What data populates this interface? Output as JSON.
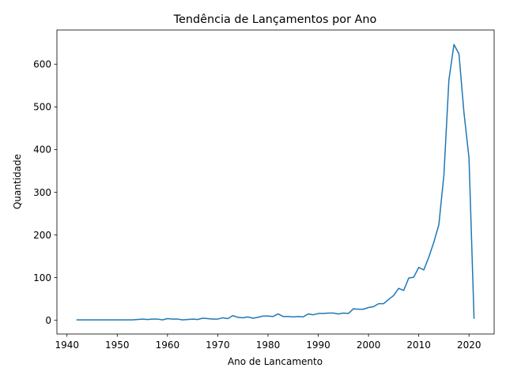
{
  "chart_data": {
    "type": "line",
    "title": "Tendência de Lançamentos por Ano",
    "xlabel": "Ano de Lancamento",
    "ylabel": "Quantidade",
    "xlim": [
      1938,
      2025
    ],
    "ylim": [
      -32,
      680
    ],
    "x_ticks": [
      1940,
      1950,
      1960,
      1970,
      1980,
      1990,
      2000,
      2010,
      2020
    ],
    "y_ticks": [
      0,
      100,
      200,
      300,
      400,
      500,
      600
    ],
    "grid": false,
    "line_color": "#1f77b4",
    "series": [
      {
        "x": [
          1942,
          1943,
          1944,
          1945,
          1946,
          1947,
          1948,
          1949,
          1950,
          1951,
          1952,
          1953,
          1954,
          1955,
          1956,
          1957,
          1958,
          1959,
          1960,
          1961,
          1962,
          1963,
          1964,
          1965,
          1966,
          1967,
          1968,
          1969,
          1970,
          1971,
          1972,
          1973,
          1974,
          1975,
          1976,
          1977,
          1978,
          1979,
          1980,
          1981,
          1982,
          1983,
          1984,
          1985,
          1986,
          1987,
          1988,
          1989,
          1990,
          1991,
          1992,
          1993,
          1994,
          1995,
          1996,
          1997,
          1998,
          1999,
          2000,
          2001,
          2002,
          2003,
          2004,
          2005,
          2006,
          2007,
          2008,
          2009,
          2010,
          2011,
          2012,
          2013,
          2014,
          2015,
          2016,
          2017,
          2018,
          2019,
          2020,
          2021
        ],
        "values": [
          1,
          1,
          1,
          1,
          1,
          1,
          1,
          1,
          1,
          1,
          1,
          1,
          2,
          3,
          2,
          3,
          3,
          1,
          4,
          3,
          3,
          1,
          2,
          3,
          2,
          5,
          4,
          3,
          3,
          6,
          4,
          11,
          7,
          6,
          8,
          5,
          7,
          10,
          10,
          9,
          15,
          9,
          9,
          8,
          9,
          8,
          15,
          13,
          16,
          16,
          17,
          17,
          15,
          17,
          16,
          27,
          26,
          26,
          30,
          32,
          39,
          39,
          49,
          58,
          75,
          70,
          99,
          101,
          124,
          118,
          148,
          183,
          224,
          340,
          563,
          646,
          624,
          486,
          380,
          5
        ]
      }
    ]
  }
}
